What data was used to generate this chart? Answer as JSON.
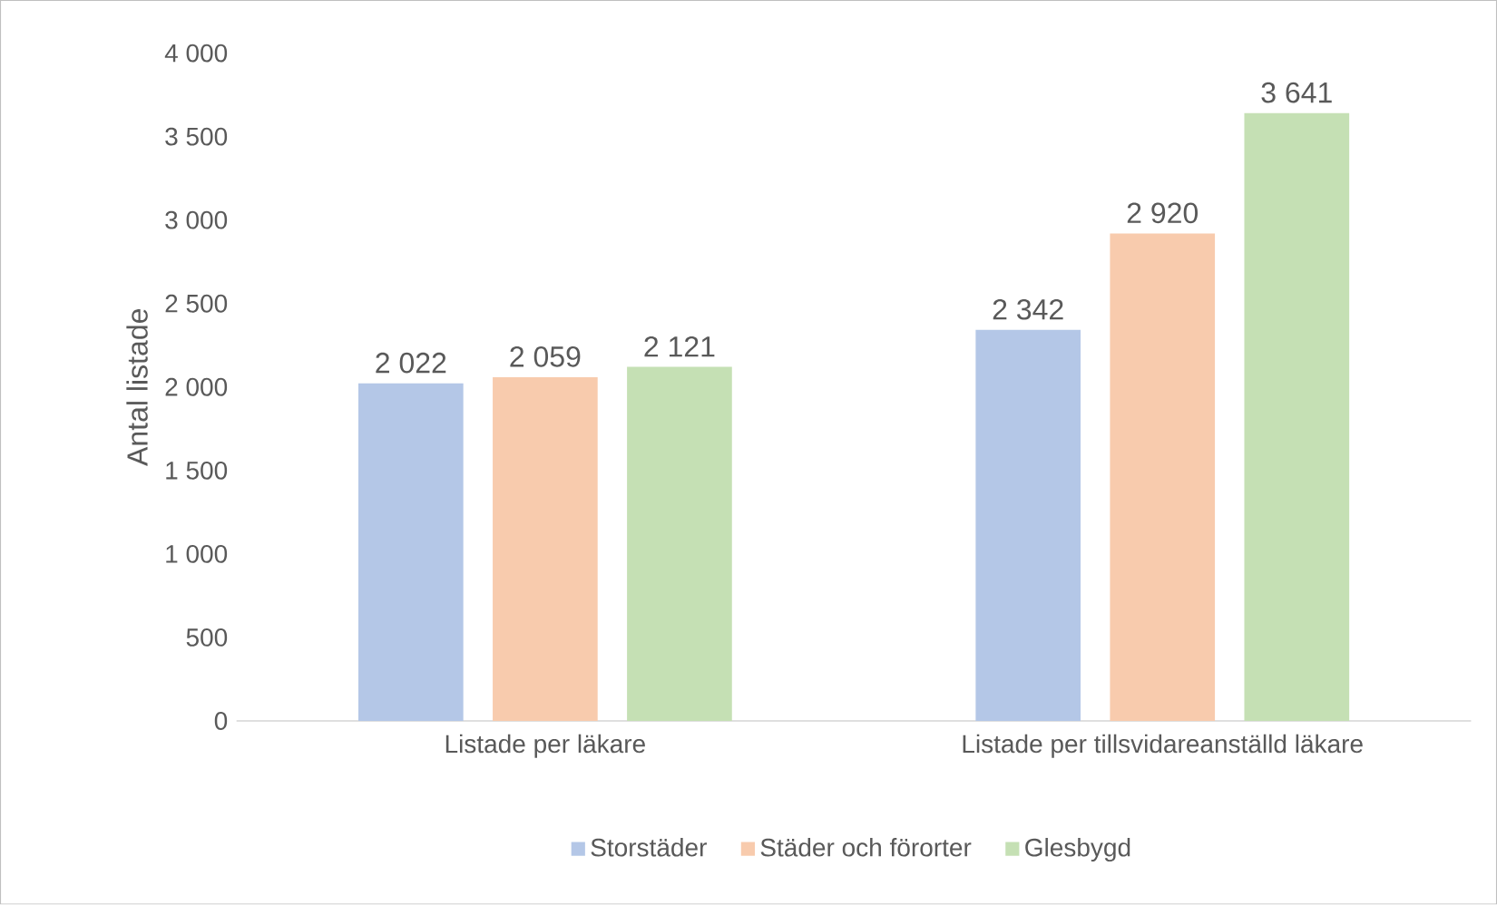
{
  "chart_data": {
    "type": "bar",
    "ylabel": "Antal listade",
    "categories": [
      "Listade per läkare",
      "Listade per tillsvidareanställd läkare"
    ],
    "series": [
      {
        "name": "Storstäder",
        "color": "#b4c7e7",
        "values": [
          2022,
          2342
        ],
        "value_labels": [
          "2 022",
          "2 342"
        ]
      },
      {
        "name": "Städer och förorter",
        "color": "#f8cbad",
        "values": [
          2059,
          2920
        ],
        "value_labels": [
          "2 059",
          "2 920"
        ]
      },
      {
        "name": "Glesbygd",
        "color": "#c5e0b4",
        "values": [
          2121,
          3641
        ],
        "value_labels": [
          "2 121",
          "3 641"
        ]
      }
    ],
    "ylim": [
      0,
      4000
    ],
    "yticks": [
      {
        "value": 0,
        "label": "0"
      },
      {
        "value": 500,
        "label": "500"
      },
      {
        "value": 1000,
        "label": "1 000"
      },
      {
        "value": 1500,
        "label": "1 500"
      },
      {
        "value": 2000,
        "label": "2 000"
      },
      {
        "value": 2500,
        "label": "2 500"
      },
      {
        "value": 3000,
        "label": "3 000"
      },
      {
        "value": 3500,
        "label": "3 500"
      },
      {
        "value": 4000,
        "label": "4 000"
      }
    ],
    "legend": "bottom"
  }
}
